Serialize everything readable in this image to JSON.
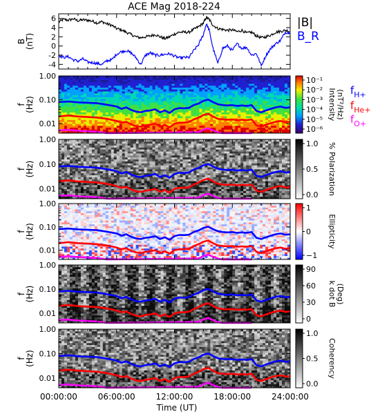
{
  "title": "ACE Mag 2018-224",
  "chart_data": [
    {
      "type": "line",
      "ylabel": "B",
      "yunit": "(nT)",
      "yticks": [
        "6",
        "4",
        "2",
        "0",
        "-2",
        "-4"
      ],
      "ylim": [
        -5,
        7
      ],
      "xlim": [
        0,
        24
      ],
      "legend": [
        "|B|",
        "B_R"
      ],
      "legend_placement": "right",
      "series": [
        {
          "name": "|B|",
          "color": "#000000",
          "x": [
            0,
            0.5,
            1,
            1.5,
            2,
            2.5,
            3,
            3.5,
            4,
            4.5,
            5,
            5.5,
            6,
            6.5,
            7,
            7.5,
            8,
            8.5,
            9,
            9.5,
            10,
            10.5,
            11,
            11.5,
            12,
            12.5,
            13,
            13.5,
            14,
            14.5,
            15,
            15.3,
            15.6,
            16,
            16.5,
            17,
            17.5,
            18,
            18.5,
            19,
            19.5,
            20,
            20.5,
            21,
            21.5,
            22,
            22.5,
            23,
            23.5,
            24
          ],
          "y": [
            5.2,
            5.8,
            5.6,
            5.9,
            5.5,
            5.7,
            5.6,
            5.4,
            5.0,
            5.3,
            4.8,
            4.5,
            3.8,
            3.5,
            3.0,
            2.5,
            2.0,
            1.8,
            2.0,
            2.2,
            2.5,
            2.0,
            1.6,
            2.0,
            2.6,
            3.0,
            3.0,
            3.0,
            3.6,
            4.2,
            5.0,
            6.2,
            5.8,
            4.5,
            3.8,
            3.6,
            3.4,
            3.5,
            3.1,
            3.4,
            2.8,
            3.0,
            2.2,
            1.8,
            2.0,
            2.4,
            3.0,
            3.2,
            3.4,
            3.2
          ]
        },
        {
          "name": "B_R",
          "color": "#0000ff",
          "x": [
            0,
            0.5,
            1,
            1.5,
            2,
            2.5,
            3,
            3.5,
            4,
            4.5,
            5,
            5.5,
            6,
            6.5,
            7,
            7.5,
            8,
            8.5,
            9,
            9.5,
            10,
            10.5,
            11,
            11.5,
            12,
            12.5,
            13,
            13.5,
            14,
            14.5,
            15,
            15.3,
            15.6,
            16,
            16.5,
            17,
            17.5,
            18,
            18.5,
            19,
            19.5,
            20,
            20.5,
            21,
            21.5,
            22,
            22.5,
            23,
            23.5,
            24
          ],
          "y": [
            -2.0,
            -2.5,
            -2.3,
            -3.0,
            -3.3,
            -2.8,
            -3.5,
            -3.6,
            -3.8,
            -4.0,
            -3.2,
            -3.0,
            -1.8,
            -1.2,
            -1.0,
            -1.5,
            -2.5,
            -4.0,
            -2.0,
            -1.5,
            -2.0,
            -2.0,
            -1.8,
            -1.7,
            -2.2,
            -2.6,
            -2.5,
            -2.5,
            -1.0,
            0.3,
            2.5,
            4.8,
            3.5,
            -0.5,
            -3.8,
            -0.5,
            0.0,
            -1.0,
            0.5,
            -0.5,
            -0.3,
            -2.0,
            -1.6,
            -4.3,
            -2.0,
            -0.5,
            0.5,
            1.2,
            3.0,
            2.8
          ]
        }
      ]
    },
    {
      "type": "heatmap",
      "ylabel": "f",
      "yunit": "(Hz)",
      "yticks": [
        "1.00",
        "0.10",
        "0.01"
      ],
      "ylim": [
        0.004,
        1.0
      ],
      "yscale": "log",
      "colorbar": {
        "label": "Intensity",
        "unit": "(nT²/Hz)",
        "ticks": [
          "10⁻¹",
          "10⁻²",
          "10⁻³",
          "10⁻⁴",
          "10⁻⁵",
          "10⁻⁶"
        ],
        "palette": "rainbow"
      },
      "legend": [
        "f_H+",
        "f_He+",
        "f_O+"
      ]
    },
    {
      "type": "heatmap",
      "ylabel": "f",
      "yunit": "(Hz)",
      "yticks": [
        "1.00",
        "0.10",
        "0.01"
      ],
      "ylim": [
        0.004,
        1.0
      ],
      "yscale": "log",
      "colorbar": {
        "label": "% Polarization",
        "ticks": [
          "1.0",
          "0.5",
          "0.0"
        ],
        "palette": "grayscale"
      }
    },
    {
      "type": "heatmap",
      "ylabel": "f",
      "yunit": "(Hz)",
      "yticks": [
        "1.00",
        "0.10",
        "0.01"
      ],
      "ylim": [
        0.004,
        1.0
      ],
      "yscale": "log",
      "colorbar": {
        "label": "Ellipticity",
        "ticks": [
          "1",
          "0",
          "−1"
        ],
        "palette": "blue-white-red"
      }
    },
    {
      "type": "heatmap",
      "ylabel": "f",
      "yunit": "(Hz)",
      "yticks": [
        "1.00",
        "0.10",
        "0.01"
      ],
      "ylim": [
        0.004,
        1.0
      ],
      "yscale": "log",
      "colorbar": {
        "label": "k dot B",
        "unit": "(Deg)",
        "ticks": [
          "90",
          "60",
          "30",
          "0"
        ],
        "palette": "grayscale"
      }
    },
    {
      "type": "heatmap",
      "ylabel": "f",
      "yunit": "(Hz)",
      "yticks": [
        "1.00",
        "0.10",
        "0.01"
      ],
      "ylim": [
        0.004,
        1.0
      ],
      "yscale": "log",
      "colorbar": {
        "label": "Coherency",
        "ticks": [
          "1.0",
          "0.5",
          "0.0"
        ],
        "palette": "grayscale"
      }
    }
  ],
  "gyro_lines": {
    "x": [
      0,
      1,
      2,
      3,
      4,
      5,
      6,
      6.5,
      7,
      7.5,
      8,
      8.5,
      9,
      9.5,
      10,
      10.5,
      11,
      11.5,
      12,
      12.5,
      13,
      13.5,
      14,
      14.5,
      15,
      15.5,
      16,
      16.5,
      17,
      17.5,
      18,
      18.5,
      19,
      19.5,
      20,
      20.5,
      21,
      21.5,
      22,
      22.5,
      23,
      23.5,
      24
    ],
    "H+": [
      0.08,
      0.085,
      0.078,
      0.075,
      0.072,
      0.062,
      0.052,
      0.042,
      0.048,
      0.038,
      0.032,
      0.03,
      0.034,
      0.036,
      0.04,
      0.03,
      0.036,
      0.028,
      0.04,
      0.045,
      0.044,
      0.046,
      0.06,
      0.07,
      0.09,
      0.102,
      0.08,
      0.065,
      0.06,
      0.058,
      0.06,
      0.055,
      0.058,
      0.055,
      0.06,
      0.034,
      0.03,
      0.036,
      0.042,
      0.048,
      0.052,
      0.046,
      0.048
    ],
    "He+": [
      0.02,
      0.022,
      0.02,
      0.019,
      0.018,
      0.016,
      0.013,
      0.011,
      0.012,
      0.0095,
      0.008,
      0.0075,
      0.0085,
      0.009,
      0.01,
      0.0075,
      0.009,
      0.007,
      0.01,
      0.011,
      0.011,
      0.0115,
      0.015,
      0.018,
      0.023,
      0.026,
      0.02,
      0.016,
      0.015,
      0.0145,
      0.015,
      0.014,
      0.0145,
      0.014,
      0.015,
      0.0085,
      0.0075,
      0.009,
      0.0105,
      0.012,
      0.013,
      0.0115,
      0.012
    ],
    "O+": [
      0.0052,
      0.0055,
      0.005,
      0.0048,
      0.0046,
      0.004,
      0.0034,
      0.003,
      0.0032,
      0.0028,
      0.0026,
      0.0025,
      0.0027,
      0.0028,
      0.0029,
      0.0026,
      0.0028,
      0.0025,
      0.0029,
      0.0031,
      0.003,
      0.0031,
      0.0038,
      0.0044,
      0.0056,
      0.0064,
      0.0052,
      0.0043,
      0.004,
      0.0039,
      0.004,
      0.0038,
      0.0039,
      0.0038,
      0.004,
      0.0028,
      0.0026,
      0.0028,
      0.0031,
      0.0034,
      0.0035,
      0.0032,
      0.0033
    ],
    "colors": {
      "H+": "#0000ff",
      "He+": "#ff0000",
      "O+": "#ff00ff"
    },
    "labels": {
      "H+": "H+",
      "He+": "He+",
      "O+": "O+",
      "f": "f"
    }
  },
  "xaxis": {
    "ticks": [
      "00:00:00",
      "06:00:00",
      "12:00:00",
      "18:00:00",
      "24:00:00"
    ],
    "label": "Time (UT)"
  }
}
